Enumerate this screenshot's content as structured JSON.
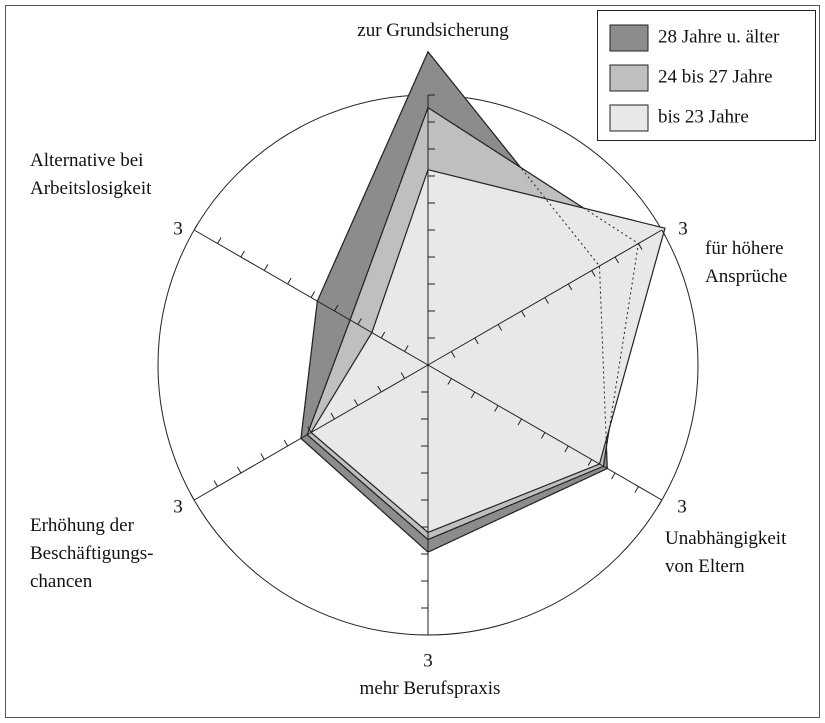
{
  "chart_data": {
    "type": "radar",
    "categories": [
      "zur Grundsicherung",
      "für höhere\nAnsprüche",
      "Unabhängigkeit\nvon Eltern",
      "mehr Berufspraxis",
      "Erhöhung der\nBeschäftigungs-\nchancen",
      "Alternative bei\nArbeitslosigkeit"
    ],
    "series": [
      {
        "name": "28 Jahre u. älter",
        "color": "#8c8c8c",
        "values": [
          3.48,
          2.2,
          2.3,
          2.08,
          1.63,
          1.42
        ]
      },
      {
        "name": "24 bis 27 Jahre",
        "color": "#bfbfbf",
        "values": [
          2.86,
          2.7,
          2.25,
          1.94,
          1.55,
          1.0
        ]
      },
      {
        "name": "bis 23 Jahre",
        "color": "#e8e8e8",
        "values": [
          2.17,
          3.04,
          2.2,
          1.86,
          1.5,
          0.72
        ]
      }
    ],
    "rlim": [
      0,
      3
    ],
    "rticks": [
      3
    ],
    "rminorticks": [
      0.3,
      0.6,
      0.9,
      1.2,
      1.5,
      1.8,
      2.1,
      2.4,
      2.7
    ],
    "legend": "upper right"
  }
}
